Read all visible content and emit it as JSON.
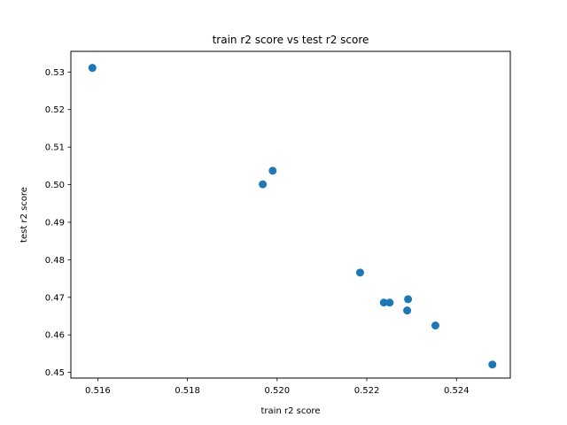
{
  "chart_data": {
    "type": "scatter",
    "title": "train r2 score vs test r2 score",
    "xlabel": "train r2 score",
    "ylabel": "test r2 score",
    "xlim": [
      0.5154,
      0.5252
    ],
    "ylim": [
      0.4485,
      0.5355
    ],
    "xticks": [
      0.516,
      0.518,
      0.52,
      0.522,
      0.524
    ],
    "yticks": [
      0.45,
      0.46,
      0.47,
      0.48,
      0.49,
      0.5,
      0.51,
      0.52,
      0.53
    ],
    "grid": false,
    "marker_color": "#1f77b4",
    "points": [
      {
        "x": 0.51588,
        "y": 0.5311
      },
      {
        "x": 0.5199,
        "y": 0.5037
      },
      {
        "x": 0.51968,
        "y": 0.5001
      },
      {
        "x": 0.52185,
        "y": 0.4766
      },
      {
        "x": 0.52238,
        "y": 0.4686
      },
      {
        "x": 0.52251,
        "y": 0.4686
      },
      {
        "x": 0.52292,
        "y": 0.4695
      },
      {
        "x": 0.5229,
        "y": 0.4665
      },
      {
        "x": 0.52353,
        "y": 0.4625
      },
      {
        "x": 0.5248,
        "y": 0.4521
      }
    ]
  }
}
